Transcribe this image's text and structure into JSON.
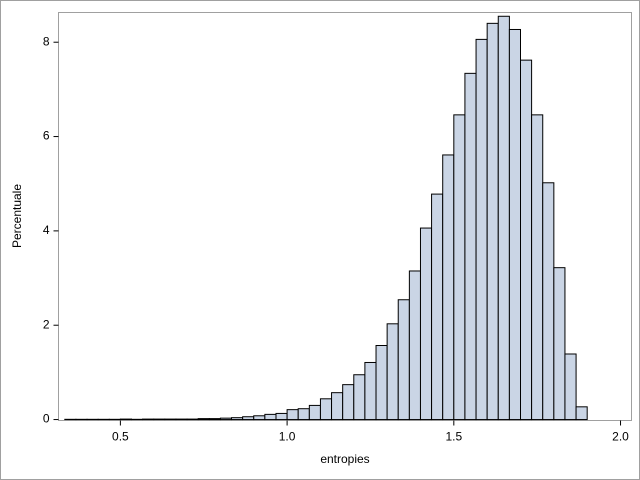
{
  "chart_data": {
    "type": "histogram",
    "x_label": "entropies",
    "y_label": "Percentuale",
    "bins": [
      0.3333,
      0.3667,
      0.4,
      0.4333,
      0.4667,
      0.5,
      0.5333,
      0.5667,
      0.6,
      0.6333,
      0.6667,
      0.7,
      0.7333,
      0.7667,
      0.8,
      0.8333,
      0.8667,
      0.9,
      0.9333,
      0.9667,
      1.0,
      1.0333,
      1.0667,
      1.1,
      1.1333,
      1.1667,
      1.2,
      1.2333,
      1.2667,
      1.3,
      1.3333,
      1.3667,
      1.4,
      1.4333,
      1.4667,
      1.5,
      1.5333,
      1.5667,
      1.6,
      1.6333,
      1.6667,
      1.7,
      1.7333,
      1.7667,
      1.8,
      1.8333,
      1.8667,
      1.9
    ],
    "values": [
      0.005,
      0.005,
      0.005,
      0.005,
      0.005,
      0.01,
      0.005,
      0.01,
      0.01,
      0.01,
      0.01,
      0.01,
      0.02,
      0.02,
      0.03,
      0.04,
      0.06,
      0.08,
      0.11,
      0.13,
      0.21,
      0.23,
      0.3,
      0.44,
      0.57,
      0.74,
      0.95,
      1.21,
      1.57,
      2.03,
      2.54,
      3.15,
      4.06,
      4.78,
      5.61,
      6.46,
      7.34,
      8.06,
      8.4,
      8.55,
      8.27,
      7.62,
      6.46,
      5.02,
      3.22,
      1.39,
      0.27
    ],
    "color": "#cad5e5",
    "edge_color": "#000000",
    "xlim": [
      0.3144,
      2.0329
    ],
    "xticks": [
      {
        "value": 0.5,
        "label": "0.5"
      },
      {
        "value": 1.0,
        "label": "1.0"
      },
      {
        "value": 1.5,
        "label": "1.5"
      },
      {
        "value": 2.0,
        "label": "2.0"
      }
    ],
    "ylim": [
      -0.02,
      8.63
    ],
    "yticks": [
      0,
      2,
      4,
      6,
      8
    ]
  }
}
